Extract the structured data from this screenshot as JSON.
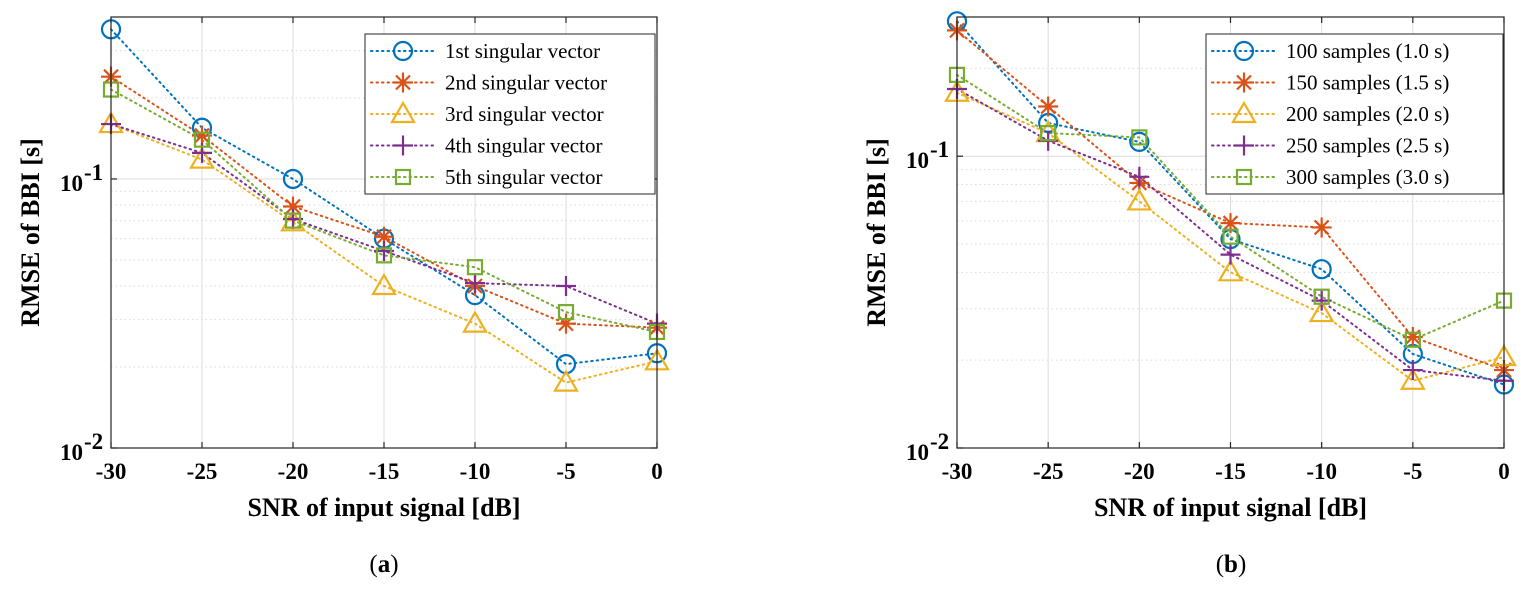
{
  "chart_data": [
    {
      "type": "line",
      "panel_label": "a",
      "xlabel": "SNR of input signal [dB]",
      "ylabel": "RMSE of BBI [s]",
      "xscale": "linear",
      "yscale": "log",
      "xlim": [
        -30,
        0
      ],
      "ylim": [
        0.01,
        0.4
      ],
      "grid": true,
      "legend_position": "top-right",
      "x_ticks": [
        {
          "value": -30,
          "label": "-30"
        },
        {
          "value": -25,
          "label": "-25"
        },
        {
          "value": -20,
          "label": "-20"
        },
        {
          "value": -15,
          "label": "-15"
        },
        {
          "value": -10,
          "label": "-10"
        },
        {
          "value": -5,
          "label": "-5"
        },
        {
          "value": 0,
          "label": "0"
        }
      ],
      "y_ticks": [
        {
          "value": 0.01,
          "base": "10",
          "exp": "-2"
        },
        {
          "value": 0.1,
          "base": "10",
          "exp": "-1"
        }
      ],
      "x": [
        -30,
        -25,
        -20,
        -15,
        -10,
        -5,
        0
      ],
      "series": [
        {
          "name": "1st singular vector",
          "color": "#0072BD",
          "marker": "circle",
          "values": [
            0.36,
            0.155,
            0.1,
            0.06,
            0.037,
            0.0205,
            0.0225
          ]
        },
        {
          "name": "2nd singular vector",
          "color": "#D95319",
          "marker": "asterisk",
          "values": [
            0.24,
            0.145,
            0.079,
            0.061,
            0.04,
            0.029,
            0.028
          ]
        },
        {
          "name": "3rd singular vector",
          "color": "#EDB120",
          "marker": "triangle",
          "values": [
            0.16,
            0.118,
            0.069,
            0.04,
            0.029,
            0.0175,
            0.021
          ]
        },
        {
          "name": "4th singular vector",
          "color": "#7E2F8E",
          "marker": "plus",
          "values": [
            0.16,
            0.125,
            0.071,
            0.054,
            0.041,
            0.04,
            0.029
          ]
        },
        {
          "name": "5th singular vector",
          "color": "#77AC30",
          "marker": "square",
          "values": [
            0.215,
            0.14,
            0.07,
            0.052,
            0.047,
            0.032,
            0.027
          ]
        }
      ]
    },
    {
      "type": "line",
      "panel_label": "b",
      "xlabel": "SNR of input signal [dB]",
      "ylabel": "RMSE of BBI [s]",
      "xscale": "linear",
      "yscale": "log",
      "xlim": [
        -30,
        0
      ],
      "ylim": [
        0.01,
        0.3
      ],
      "grid": true,
      "legend_position": "top-right",
      "x_ticks": [
        {
          "value": -30,
          "label": "-30"
        },
        {
          "value": -25,
          "label": "-25"
        },
        {
          "value": -20,
          "label": "-20"
        },
        {
          "value": -15,
          "label": "-15"
        },
        {
          "value": -10,
          "label": "-10"
        },
        {
          "value": -5,
          "label": "-5"
        },
        {
          "value": 0,
          "label": "0"
        }
      ],
      "y_ticks": [
        {
          "value": 0.01,
          "base": "10",
          "exp": "-2"
        },
        {
          "value": 0.1,
          "base": "10",
          "exp": "-1"
        }
      ],
      "x": [
        -30,
        -25,
        -20,
        -15,
        -10,
        -5,
        0
      ],
      "series": [
        {
          "name": "100 samples (1.0 s)",
          "color": "#0072BD",
          "marker": "circle",
          "values": [
            0.29,
            0.13,
            0.112,
            0.052,
            0.041,
            0.021,
            0.0165
          ]
        },
        {
          "name": "150 samples (1.5 s)",
          "color": "#D95319",
          "marker": "asterisk",
          "values": [
            0.27,
            0.148,
            0.081,
            0.059,
            0.057,
            0.024,
            0.0185
          ]
        },
        {
          "name": "200 samples (2.0 s)",
          "color": "#EDB120",
          "marker": "triangle",
          "values": [
            0.165,
            0.12,
            0.07,
            0.04,
            0.029,
            0.017,
            0.0205
          ]
        },
        {
          "name": "250 samples (2.5 s)",
          "color": "#7E2F8E",
          "marker": "plus",
          "values": [
            0.17,
            0.113,
            0.085,
            0.046,
            0.032,
            0.0185,
            0.017
          ]
        },
        {
          "name": "300 samples (3.0 s)",
          "color": "#77AC30",
          "marker": "square",
          "values": [
            0.19,
            0.12,
            0.116,
            0.053,
            0.033,
            0.0235,
            0.032
          ]
        }
      ]
    }
  ]
}
